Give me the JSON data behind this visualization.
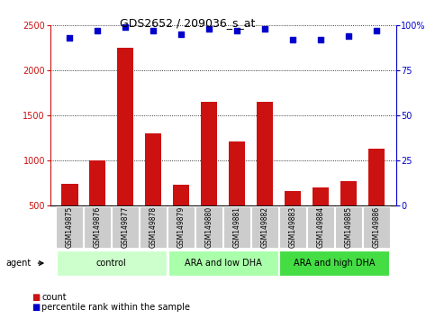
{
  "title": "GDS2652 / 209036_s_at",
  "samples": [
    "GSM149875",
    "GSM149876",
    "GSM149877",
    "GSM149878",
    "GSM149879",
    "GSM149880",
    "GSM149881",
    "GSM149882",
    "GSM149883",
    "GSM149884",
    "GSM149885",
    "GSM149886"
  ],
  "counts": [
    740,
    1000,
    2250,
    1300,
    730,
    1650,
    1210,
    1650,
    660,
    700,
    770,
    1130
  ],
  "percentile_ranks": [
    93,
    97,
    99,
    97,
    95,
    98,
    97,
    98,
    92,
    92,
    94,
    97
  ],
  "bar_color": "#cc1111",
  "dot_color": "#0000cc",
  "ylim_left": [
    500,
    2500
  ],
  "ylim_right": [
    0,
    100
  ],
  "yticks_left": [
    500,
    1000,
    1500,
    2000,
    2500
  ],
  "yticks_right": [
    0,
    25,
    50,
    75,
    100
  ],
  "groups": [
    {
      "label": "control",
      "start": 0,
      "end": 3,
      "color": "#ccffcc"
    },
    {
      "label": "ARA and low DHA",
      "start": 4,
      "end": 7,
      "color": "#aaffaa"
    },
    {
      "label": "ARA and high DHA",
      "start": 8,
      "end": 11,
      "color": "#44dd44"
    }
  ],
  "agent_label": "agent",
  "legend_count_label": "count",
  "legend_percentile_label": "percentile rank within the sample",
  "tick_label_bg": "#cccccc",
  "spine_color": "#000000"
}
